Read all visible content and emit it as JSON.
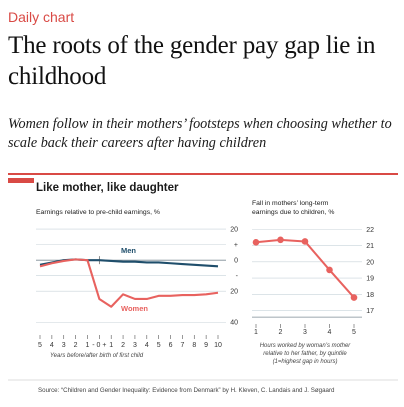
{
  "kicker": "Daily chart",
  "headline": "The roots of the gender pay gap lie in childhood",
  "subhead": "Women follow in their mothers’ footsteps when choosing whether to scale back their careers after having children",
  "panel_title": "Like mother, like daughter",
  "source": "Source: “Children and Gender Inequality: Evidence from Denmark” by H. Kleven, C. Landais and J. Søgaard",
  "colors": {
    "accent": "#d94a45",
    "men": "#1f4e6b",
    "women": "#e8625f",
    "grid": "#c8d3da"
  },
  "chart_data": [
    {
      "type": "line",
      "title": "Earnings relative to pre-child earnings, %",
      "xlabel": "Years before/after birth of first child",
      "x": [
        -5,
        -4,
        -3,
        -2,
        -1,
        0,
        1,
        2,
        3,
        4,
        5,
        6,
        7,
        8,
        9,
        10
      ],
      "x_tick_labels": [
        "5",
        "4",
        "3",
        "2",
        "1",
        "- 0 +",
        "1",
        "2",
        "3",
        "4",
        "5",
        "6",
        "7",
        "8",
        "9",
        "10"
      ],
      "y_tick_labels": [
        "20",
        "+",
        "0",
        "-",
        "20",
        "40"
      ],
      "ylim": [
        -45,
        22
      ],
      "series": [
        {
          "name": "Men",
          "values": [
            -3,
            -1.5,
            0,
            0.5,
            0,
            0,
            -0.5,
            -1,
            -1,
            -1.5,
            -1.5,
            -2,
            -2.5,
            -3,
            -3.5,
            -4
          ]
        },
        {
          "name": "Women",
          "values": [
            -4,
            -2,
            -0.5,
            0.5,
            0,
            -25,
            -30,
            -22,
            -25,
            -25,
            -23,
            -23,
            -22.5,
            -22.5,
            -22,
            -21
          ]
        }
      ]
    },
    {
      "type": "line",
      "title": "Fall in mothers’ long-term earnings due to children, %",
      "xlabel": "Hours worked by woman’s mother relative to her father, by quintile (1=highest gap in hours)",
      "x": [
        1,
        2,
        3,
        4,
        5
      ],
      "y_tick_labels": [
        "22",
        "21",
        "20",
        "19",
        "18",
        "17"
      ],
      "ylim": [
        16.3,
        22.2
      ],
      "series": [
        {
          "values": [
            21.2,
            21.35,
            21.25,
            19.5,
            17.8
          ]
        }
      ]
    }
  ]
}
